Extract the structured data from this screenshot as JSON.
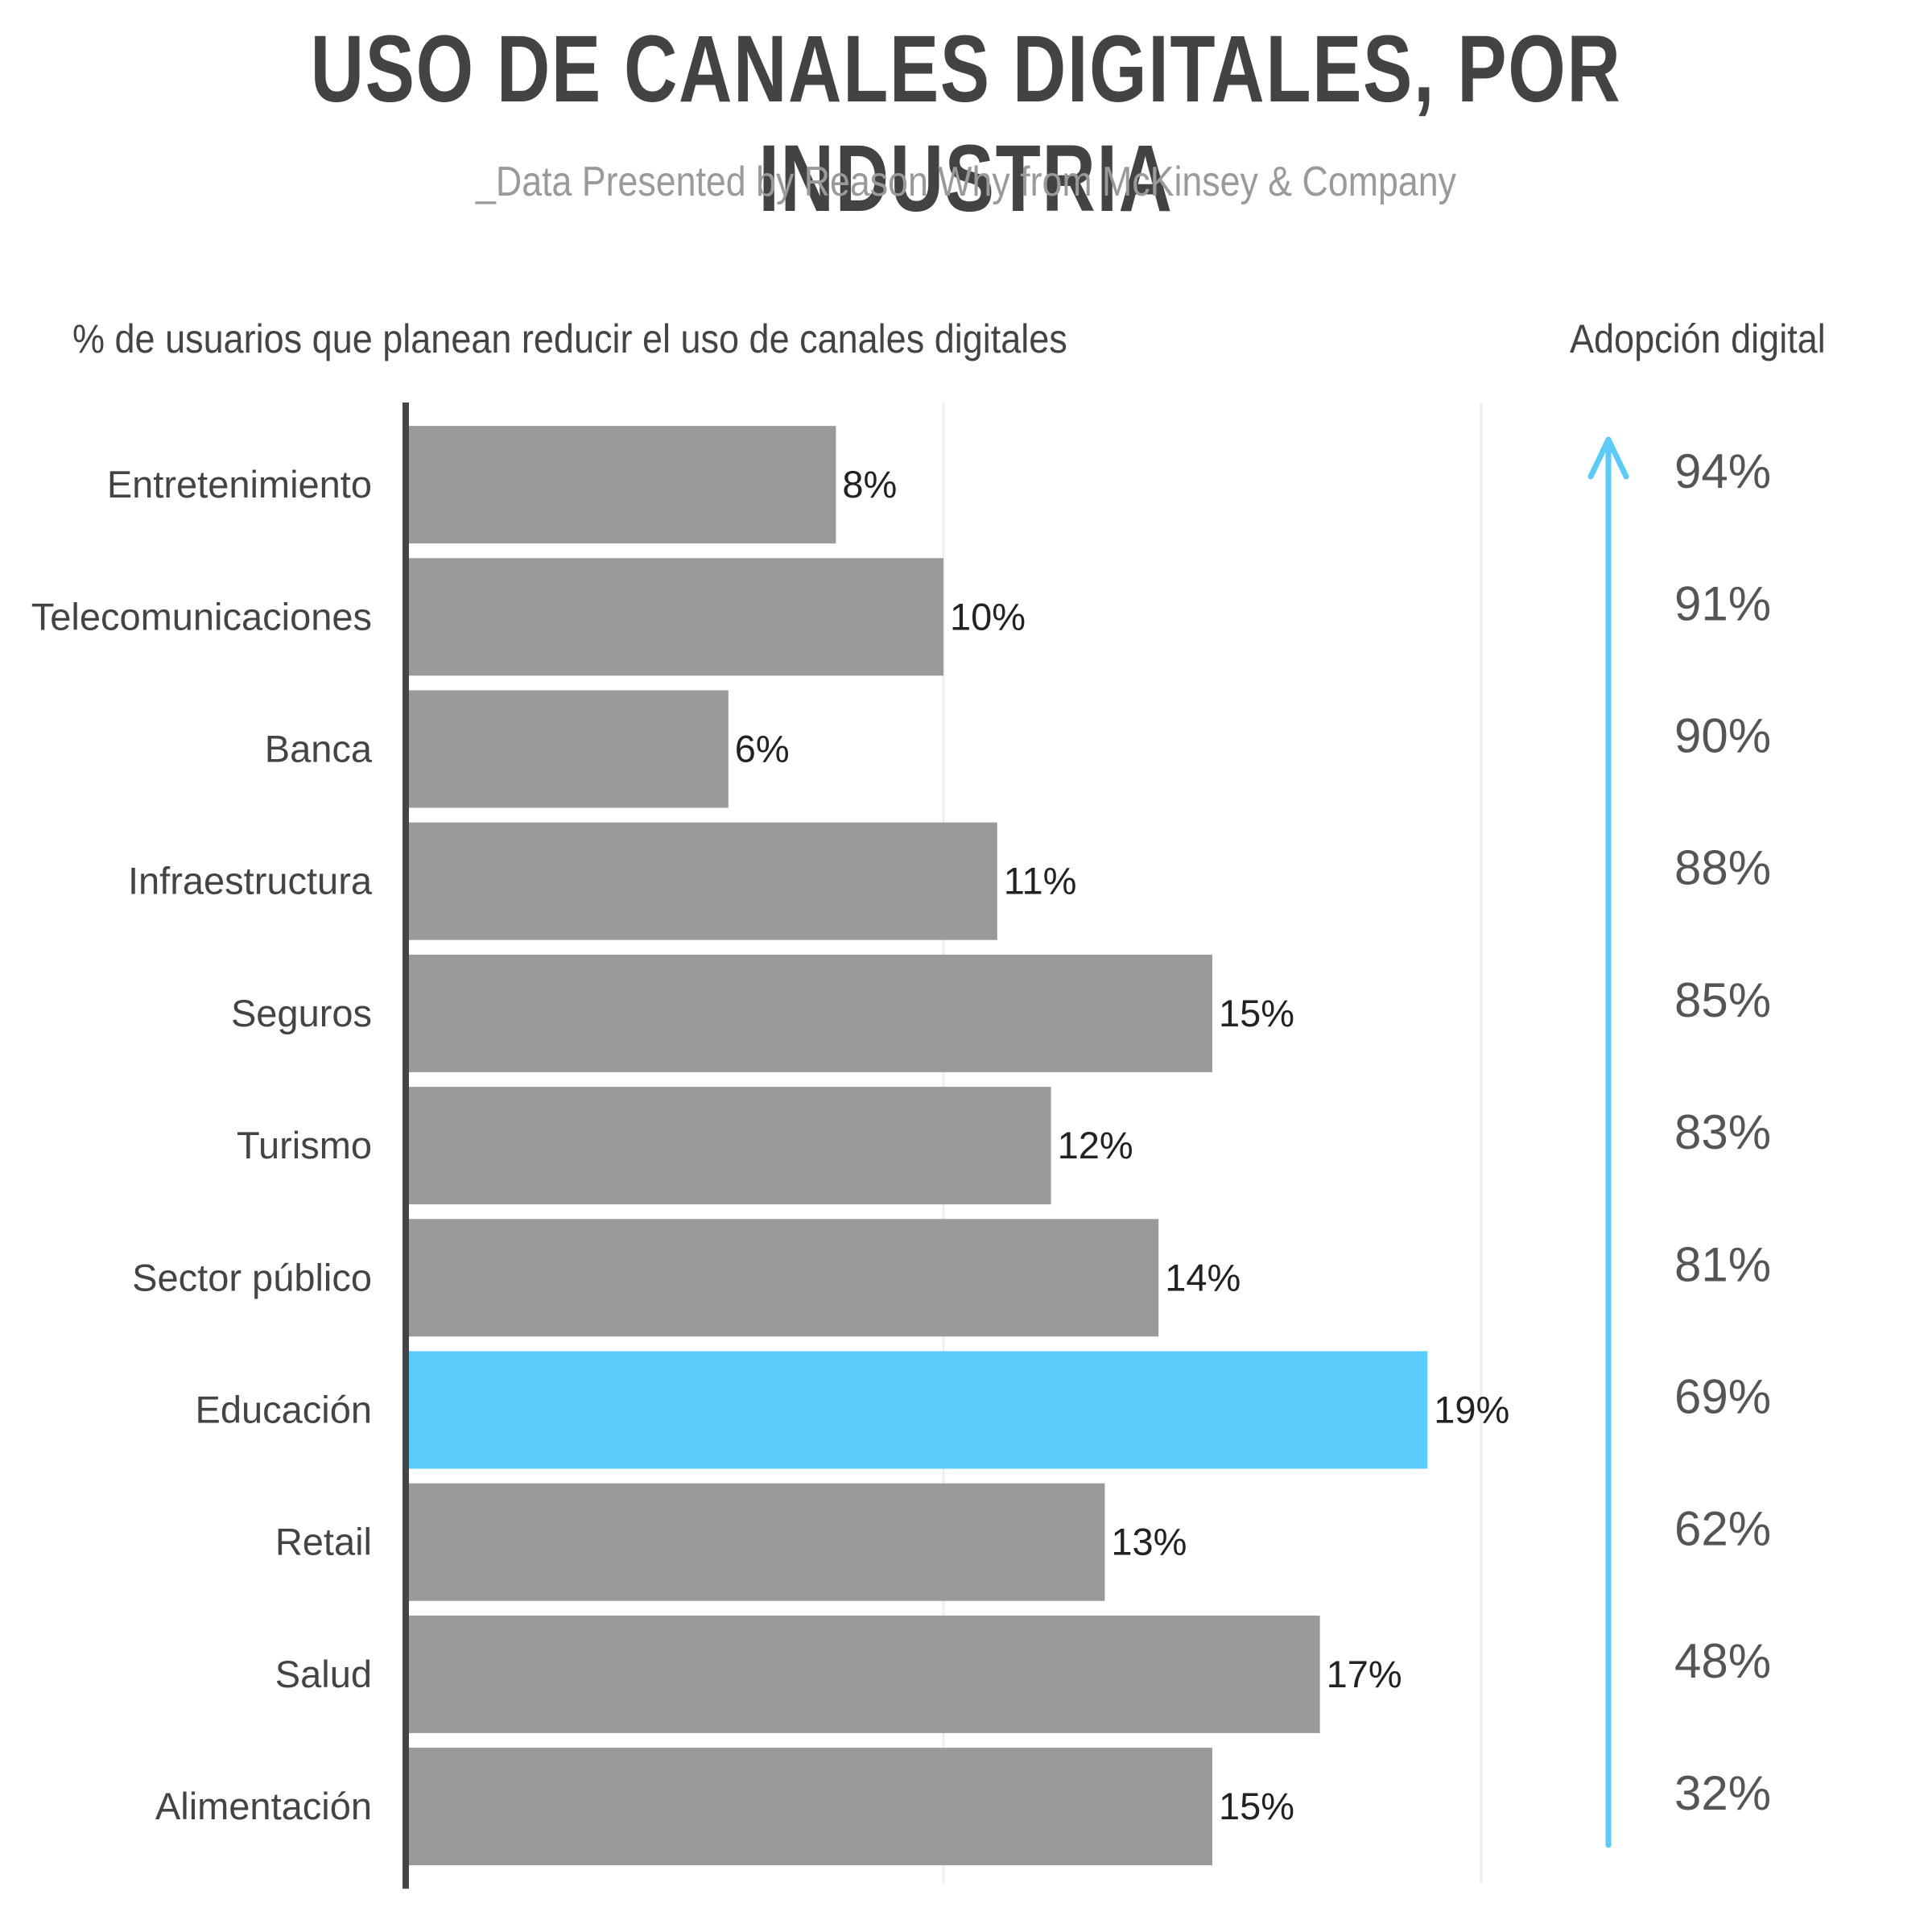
{
  "header": {
    "title": "USO DE CANALES DIGITALES, POR INDUSTRIA",
    "subtitle": "_Data Presented by Reason Why from McKinsey & Company"
  },
  "chart_data": {
    "type": "bar",
    "orientation": "horizontal",
    "title": "USO DE CANALES DIGITALES, POR INDUSTRIA",
    "subtitle": "_Data Presented by Reason Why from McKinsey & Company",
    "xlabel": "% de usuarios que planean reducir el uso de canales digitales",
    "secondary_label": "Adopción digital",
    "categories": [
      "Entretenimiento",
      "Telecomunicaciones",
      "Banca",
      "Infraestructura",
      "Seguros",
      "Turismo",
      "Sector público",
      "Educación",
      "Retail",
      "Salud",
      "Alimentación"
    ],
    "values": [
      8,
      10,
      6,
      11,
      15,
      12,
      14,
      19,
      13,
      17,
      15
    ],
    "value_labels": [
      "8%",
      "10%",
      "6%",
      "11%",
      "15%",
      "12%",
      "14%",
      "19%",
      "13%",
      "17%",
      "15%"
    ],
    "adoption_values": [
      94,
      91,
      90,
      88,
      85,
      83,
      81,
      69,
      62,
      48,
      32
    ],
    "adoption_labels": [
      "94%",
      "91%",
      "90%",
      "88%",
      "85%",
      "83%",
      "81%",
      "69%",
      "62%",
      "48%",
      "32%"
    ],
    "highlight_category": "Educación",
    "xlim": [
      0,
      20
    ],
    "grid": true,
    "colors": {
      "bar": "#9a9a9a",
      "highlight": "#5bcbfb",
      "arrow": "#5bcbfb",
      "axis": "#444444",
      "grid": "#eeeeee"
    }
  }
}
